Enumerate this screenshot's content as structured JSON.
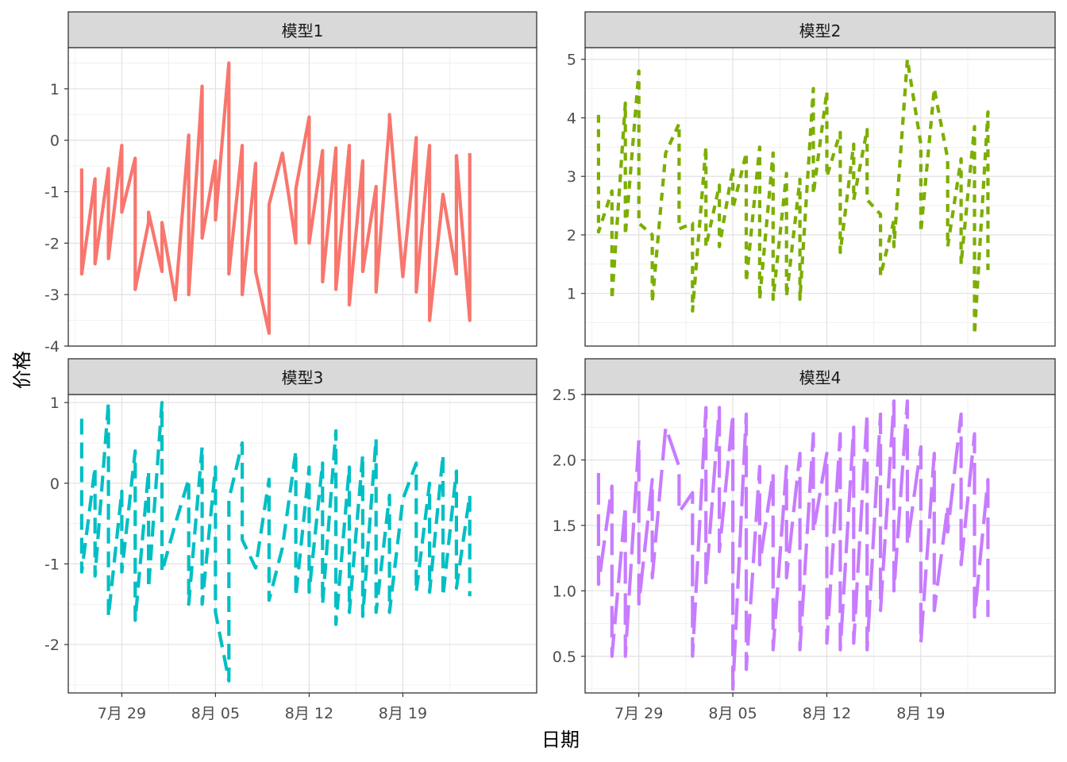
{
  "chart_data": {
    "type": "line",
    "xlabel": "日期",
    "ylabel": "价格",
    "x_ticks": [
      {
        "date": "2024-07-29",
        "label": "7月 29"
      },
      {
        "date": "2024-08-05",
        "label": "8月 05"
      },
      {
        "date": "2024-08-12",
        "label": "8月 12"
      },
      {
        "date": "2024-08-19",
        "label": "8月 19"
      }
    ],
    "xlim": [
      "2024-07-25",
      "2024-08-29"
    ],
    "grid": true,
    "panels": [
      {
        "strip": "模型1",
        "color": "#F8766D",
        "dash": "solid",
        "ylim": [
          -4.0,
          1.8
        ],
        "yticks": [
          1,
          0,
          -1,
          -2,
          -3,
          -4
        ],
        "dates": [
          "2024-07-26",
          "2024-07-26",
          "2024-07-27",
          "2024-07-27",
          "2024-07-28",
          "2024-07-28",
          "2024-07-29",
          "2024-07-29",
          "2024-07-30",
          "2024-07-30",
          "2024-07-31",
          "2024-07-31",
          "2024-08-01",
          "2024-08-01",
          "2024-08-02",
          "2024-08-03",
          "2024-08-03",
          "2024-08-04",
          "2024-08-04",
          "2024-08-05",
          "2024-08-05",
          "2024-08-06",
          "2024-08-06",
          "2024-08-07",
          "2024-08-07",
          "2024-08-08",
          "2024-08-08",
          "2024-08-09",
          "2024-08-09",
          "2024-08-10",
          "2024-08-11",
          "2024-08-11",
          "2024-08-12",
          "2024-08-12",
          "2024-08-13",
          "2024-08-13",
          "2024-08-14",
          "2024-08-14",
          "2024-08-15",
          "2024-08-15",
          "2024-08-16",
          "2024-08-16",
          "2024-08-17",
          "2024-08-17",
          "2024-08-18",
          "2024-08-18",
          "2024-08-19",
          "2024-08-20",
          "2024-08-20",
          "2024-08-21",
          "2024-08-21",
          "2024-08-22",
          "2024-08-22",
          "2024-08-23",
          "2024-08-23",
          "2024-08-24",
          "2024-08-24"
        ],
        "values": [
          -0.55,
          -2.6,
          -0.75,
          -2.4,
          -0.55,
          -2.3,
          -0.1,
          -1.4,
          -0.35,
          -2.9,
          -1.6,
          -1.4,
          -2.55,
          -1.6,
          -3.1,
          0.1,
          -3.0,
          1.05,
          -1.9,
          -0.4,
          -1.55,
          1.5,
          -2.6,
          -0.1,
          -3.0,
          -0.45,
          -2.55,
          -3.75,
          -1.25,
          -0.25,
          -2.0,
          -0.95,
          0.45,
          -2.0,
          -0.2,
          -2.75,
          -0.15,
          -2.9,
          -0.1,
          -3.2,
          -0.4,
          -2.55,
          -0.9,
          -2.95,
          0.35,
          0.5,
          -2.65,
          0.05,
          -2.95,
          -0.1,
          -3.5,
          -1.05,
          -1.05,
          -2.6,
          -0.3,
          -3.5,
          -0.25
        ]
      },
      {
        "strip": "模型2",
        "color": "#7CAE00",
        "dash": "dotted",
        "ylim": [
          0.1,
          5.2
        ],
        "yticks": [
          1,
          2,
          3,
          4,
          5
        ],
        "dates": [
          "2024-07-26",
          "2024-07-26",
          "2024-07-27",
          "2024-07-27",
          "2024-07-28",
          "2024-07-28",
          "2024-07-29",
          "2024-07-29",
          "2024-07-30",
          "2024-07-30",
          "2024-07-31",
          "2024-08-01",
          "2024-08-01",
          "2024-08-02",
          "2024-08-02",
          "2024-08-03",
          "2024-08-03",
          "2024-08-04",
          "2024-08-04",
          "2024-08-05",
          "2024-08-05",
          "2024-08-06",
          "2024-08-06",
          "2024-08-07",
          "2024-08-07",
          "2024-08-08",
          "2024-08-08",
          "2024-08-09",
          "2024-08-09",
          "2024-08-10",
          "2024-08-10",
          "2024-08-11",
          "2024-08-11",
          "2024-08-12",
          "2024-08-12",
          "2024-08-13",
          "2024-08-13",
          "2024-08-14",
          "2024-08-14",
          "2024-08-15",
          "2024-08-15",
          "2024-08-16",
          "2024-08-16",
          "2024-08-17",
          "2024-08-17",
          "2024-08-18",
          "2024-08-19",
          "2024-08-19",
          "2024-08-20",
          "2024-08-21",
          "2024-08-21",
          "2024-08-22",
          "2024-08-22",
          "2024-08-23",
          "2024-08-23",
          "2024-08-24",
          "2024-08-24"
        ],
        "values": [
          4.05,
          2.05,
          2.75,
          0.9,
          4.25,
          2.0,
          4.8,
          2.2,
          2.0,
          0.85,
          3.4,
          3.9,
          2.1,
          2.2,
          0.7,
          3.5,
          1.8,
          2.85,
          1.8,
          3.15,
          2.45,
          3.4,
          1.2,
          3.5,
          0.9,
          3.4,
          0.9,
          3.05,
          0.95,
          2.95,
          0.9,
          4.5,
          2.7,
          4.45,
          3.0,
          3.75,
          1.7,
          3.55,
          2.6,
          3.8,
          2.6,
          2.35,
          1.3,
          2.25,
          1.8,
          5.0,
          3.55,
          2.05,
          4.5,
          3.3,
          1.8,
          3.3,
          1.5,
          3.85,
          0.3,
          4.1,
          1.4
        ]
      },
      {
        "strip": "模型3",
        "color": "#00BFC4",
        "dash": "dashed",
        "ylim": [
          -2.6,
          1.1
        ],
        "yticks": [
          1,
          0,
          -1,
          -2
        ],
        "dates": [
          "2024-07-26",
          "2024-07-26",
          "2024-07-27",
          "2024-07-27",
          "2024-07-28",
          "2024-07-28",
          "2024-07-29",
          "2024-07-29",
          "2024-07-30",
          "2024-07-30",
          "2024-07-31",
          "2024-07-31",
          "2024-08-01",
          "2024-08-01",
          "2024-08-02",
          "2024-08-03",
          "2024-08-03",
          "2024-08-04",
          "2024-08-04",
          "2024-08-05",
          "2024-08-05",
          "2024-08-06",
          "2024-08-06",
          "2024-08-07",
          "2024-08-07",
          "2024-08-08",
          "2024-08-09",
          "2024-08-09",
          "2024-08-10",
          "2024-08-11",
          "2024-08-11",
          "2024-08-12",
          "2024-08-12",
          "2024-08-13",
          "2024-08-13",
          "2024-08-14",
          "2024-08-14",
          "2024-08-15",
          "2024-08-15",
          "2024-08-16",
          "2024-08-16",
          "2024-08-17",
          "2024-08-17",
          "2024-08-18",
          "2024-08-18",
          "2024-08-19",
          "2024-08-20",
          "2024-08-20",
          "2024-08-21",
          "2024-08-21",
          "2024-08-22",
          "2024-08-22",
          "2024-08-23",
          "2024-08-23",
          "2024-08-24",
          "2024-08-24"
        ],
        "values": [
          0.8,
          -1.1,
          0.2,
          -1.15,
          1.0,
          -1.65,
          -0.1,
          -1.1,
          0.4,
          -1.7,
          0.15,
          -1.3,
          1.0,
          -1.1,
          -0.5,
          0.05,
          -1.5,
          0.45,
          -1.5,
          0.2,
          -1.6,
          -2.45,
          -0.2,
          0.5,
          -0.7,
          -1.05,
          0.05,
          -1.45,
          -0.8,
          0.4,
          -1.4,
          0.2,
          -1.35,
          0.25,
          -1.5,
          0.65,
          -1.75,
          0.2,
          -1.6,
          0.35,
          -1.65,
          0.55,
          -1.6,
          -0.15,
          -1.6,
          -0.2,
          0.25,
          -1.35,
          0.0,
          -1.35,
          0.35,
          -1.4,
          0.15,
          -1.3,
          -0.15,
          -1.4
        ]
      },
      {
        "strip": "模型4",
        "color": "#C77CFF",
        "dash": "longdash",
        "ylim": [
          0.22,
          2.5
        ],
        "yticks": [
          2.5,
          2.0,
          1.5,
          1.0,
          0.5
        ],
        "dates": [
          "2024-07-26",
          "2024-07-26",
          "2024-07-27",
          "2024-07-27",
          "2024-07-28",
          "2024-07-28",
          "2024-07-29",
          "2024-07-29",
          "2024-07-30",
          "2024-07-30",
          "2024-07-31",
          "2024-08-01",
          "2024-08-01",
          "2024-08-02",
          "2024-08-02",
          "2024-08-03",
          "2024-08-03",
          "2024-08-04",
          "2024-08-04",
          "2024-08-05",
          "2024-08-05",
          "2024-08-06",
          "2024-08-06",
          "2024-08-07",
          "2024-08-07",
          "2024-08-08",
          "2024-08-08",
          "2024-08-09",
          "2024-08-09",
          "2024-08-10",
          "2024-08-10",
          "2024-08-11",
          "2024-08-11",
          "2024-08-12",
          "2024-08-12",
          "2024-08-13",
          "2024-08-13",
          "2024-08-14",
          "2024-08-14",
          "2024-08-15",
          "2024-08-15",
          "2024-08-16",
          "2024-08-16",
          "2024-08-17",
          "2024-08-17",
          "2024-08-18",
          "2024-08-18",
          "2024-08-19",
          "2024-08-19",
          "2024-08-20",
          "2024-08-20",
          "2024-08-21",
          "2024-08-21",
          "2024-08-22",
          "2024-08-22",
          "2024-08-23",
          "2024-08-23",
          "2024-08-24",
          "2024-08-24"
        ],
        "values": [
          1.9,
          1.05,
          1.8,
          0.5,
          1.65,
          0.5,
          2.15,
          0.9,
          1.85,
          1.1,
          2.25,
          1.95,
          1.6,
          1.75,
          0.5,
          2.4,
          1.05,
          2.4,
          1.3,
          2.35,
          0.25,
          2.35,
          0.4,
          1.95,
          1.2,
          1.9,
          0.55,
          1.95,
          1.1,
          2.05,
          0.55,
          2.2,
          1.45,
          2.05,
          0.6,
          2.2,
          0.55,
          2.25,
          0.6,
          2.35,
          0.55,
          2.35,
          0.85,
          2.45,
          1.0,
          2.45,
          1.35,
          2.1,
          0.6,
          2.05,
          0.85,
          1.65,
          1.45,
          2.35,
          1.2,
          2.2,
          0.8,
          1.85,
          0.8
        ]
      }
    ]
  }
}
